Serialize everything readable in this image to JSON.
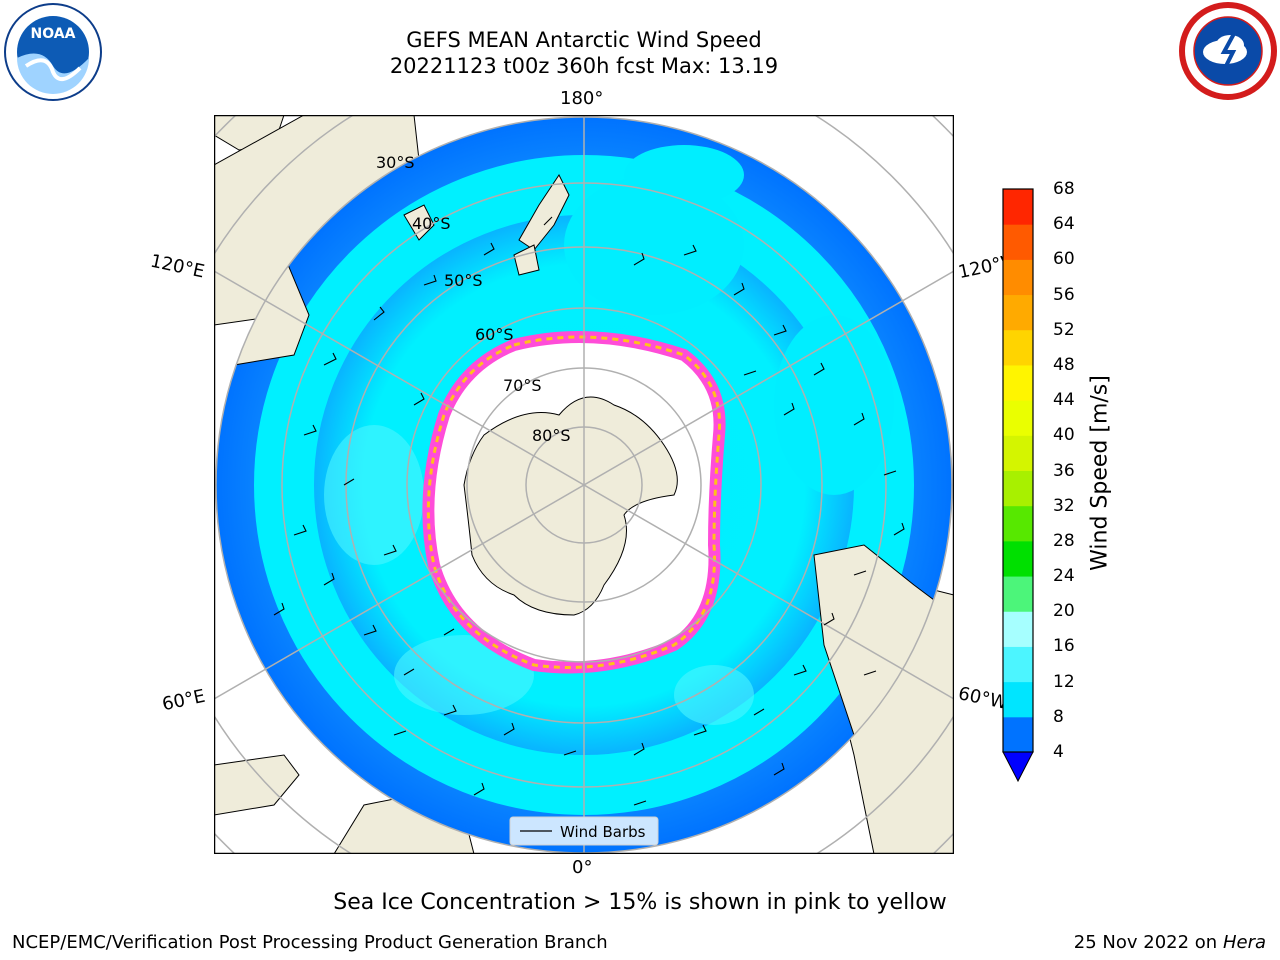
{
  "header": {
    "title_line1": "GEFS MEAN Antarctic Wind Speed",
    "title_line2": "20221123 t00z 360h fcst   Max: 13.19"
  },
  "map": {
    "projection": "south polar stereographic",
    "lon_labels": {
      "top": "180°",
      "bottom": "0°",
      "upper_left": "120°E",
      "upper_right": "120°W",
      "lower_left": "60°E",
      "lower_right": "60°W"
    },
    "lat_labels": [
      "30°S",
      "40°S",
      "50°S",
      "60°S",
      "70°S",
      "80°S"
    ],
    "legend_label": "Wind Barbs"
  },
  "colorbar": {
    "label": "Wind Speed [m/s]",
    "ticks": [
      "4",
      "8",
      "12",
      "16",
      "20",
      "24",
      "28",
      "32",
      "36",
      "40",
      "44",
      "48",
      "52",
      "56",
      "60",
      "64",
      "68"
    ],
    "colors": [
      "#0073ff",
      "#00e5ff",
      "#4cf5ff",
      "#a6ffff",
      "#4cf57a",
      "#00e000",
      "#57e800",
      "#a8f000",
      "#d4f500",
      "#eaff00",
      "#fff500",
      "#ffd400",
      "#ffaa00",
      "#ff8c00",
      "#ff5a00",
      "#ff2600"
    ],
    "extend_color": "#0000ff"
  },
  "colors": {
    "land": "#efecda",
    "ice": "#ffffff",
    "ocean_low": "#0073ff",
    "ocean_mid": "#00eeff",
    "ocean_high": "#4cf5ff",
    "sea_ice_edge": "#ff4dd8",
    "sea_ice_yellow": "#ffc21a"
  },
  "footer": {
    "note": "Sea Ice Concentration > 15% is shown in pink to yellow",
    "credit": "NCEP/EMC/Verification Post Processing Product Generation Branch",
    "date": "25 Nov 2022 on",
    "host": "Hera"
  },
  "logos": {
    "left": "noaa-logo",
    "left_text": "NOAA",
    "right": "nws-logo"
  }
}
